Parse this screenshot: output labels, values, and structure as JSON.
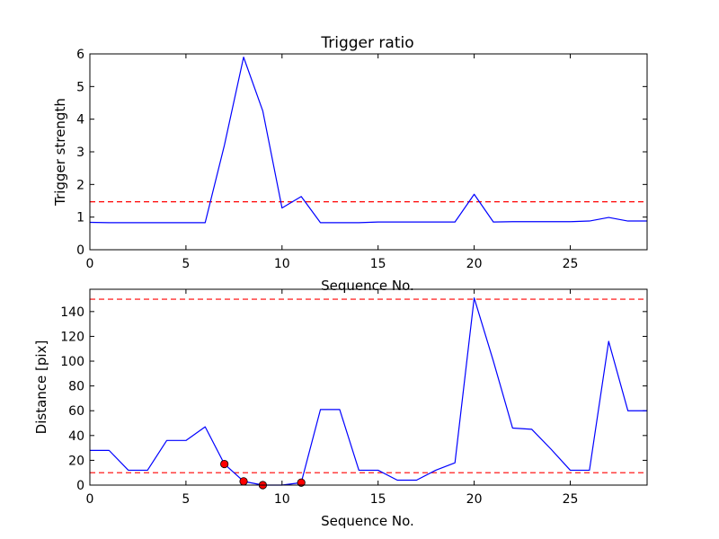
{
  "chart_data": [
    {
      "type": "line",
      "title": "Trigger ratio",
      "xlabel": "Sequence No.",
      "ylabel": "Trigger strength",
      "xlim": [
        0,
        29
      ],
      "ylim": [
        0,
        6
      ],
      "xticks": [
        0,
        5,
        10,
        15,
        20,
        25
      ],
      "yticks": [
        0,
        1,
        2,
        3,
        4,
        5,
        6
      ],
      "grid": false,
      "series": [
        {
          "color": "#0000ff",
          "style": "solid",
          "x": [
            0,
            1,
            2,
            3,
            4,
            5,
            6,
            7,
            8,
            9,
            10,
            11,
            12,
            13,
            14,
            15,
            16,
            17,
            18,
            19,
            20,
            21,
            22,
            23,
            24,
            25,
            26,
            27,
            28,
            29
          ],
          "y": [
            0.84,
            0.83,
            0.83,
            0.83,
            0.83,
            0.83,
            0.83,
            3.2,
            5.9,
            4.25,
            1.28,
            1.63,
            0.83,
            0.83,
            0.83,
            0.85,
            0.85,
            0.85,
            0.85,
            0.85,
            1.7,
            0.85,
            0.86,
            0.86,
            0.86,
            0.86,
            0.88,
            0.99,
            0.88,
            0.88
          ]
        }
      ],
      "threshold_lines": [
        {
          "y": 1.47,
          "color": "#ff0000",
          "style": "dashed"
        }
      ]
    },
    {
      "type": "line",
      "title": "",
      "xlabel": "Sequence No.",
      "ylabel": "Distance [pix]",
      "xlim": [
        0,
        29
      ],
      "ylim": [
        0,
        158
      ],
      "xticks": [
        0,
        5,
        10,
        15,
        20,
        25
      ],
      "yticks": [
        0,
        20,
        40,
        60,
        80,
        100,
        120,
        140
      ],
      "grid": false,
      "series": [
        {
          "color": "#0000ff",
          "style": "solid",
          "x": [
            0,
            1,
            2,
            3,
            4,
            5,
            6,
            7,
            8,
            9,
            10,
            11,
            12,
            13,
            14,
            15,
            16,
            17,
            18,
            19,
            20,
            21,
            22,
            23,
            24,
            25,
            26,
            27,
            28,
            29
          ],
          "y": [
            28,
            28,
            12,
            12,
            36,
            36,
            47,
            17,
            3,
            0,
            0,
            2,
            61,
            61,
            12,
            12,
            4,
            4,
            12,
            18,
            151,
            100,
            46,
            45,
            29,
            12,
            12,
            116,
            60,
            60
          ]
        }
      ],
      "markers": {
        "color": "#ff0000",
        "points": [
          {
            "x": 7,
            "y": 17
          },
          {
            "x": 8,
            "y": 3
          },
          {
            "x": 9,
            "y": 0
          },
          {
            "x": 11,
            "y": 2
          }
        ]
      },
      "threshold_lines": [
        {
          "y": 150,
          "color": "#ff0000",
          "style": "dashed"
        },
        {
          "y": 10,
          "color": "#ff0000",
          "style": "dashed"
        }
      ]
    }
  ]
}
